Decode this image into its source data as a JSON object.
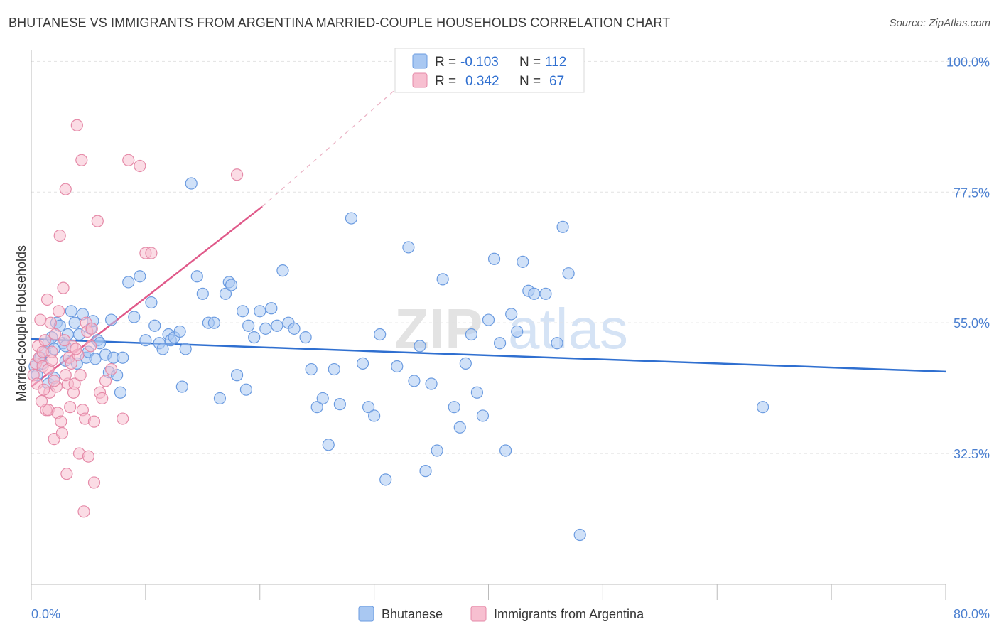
{
  "title": "BHUTANESE VS IMMIGRANTS FROM ARGENTINA MARRIED-COUPLE HOUSEHOLDS CORRELATION CHART",
  "source": "Source: ZipAtlas.com",
  "watermark": {
    "zip": "ZIP",
    "atlas": "atlas"
  },
  "legend": {
    "rows": [
      {
        "r_label": "R =",
        "r_value": "-0.103",
        "n_label": "N =",
        "n_value": "112",
        "color": "#a9c8f2",
        "stroke": "#6b9be0"
      },
      {
        "r_label": "R =",
        "r_value": "0.342",
        "n_label": "N =",
        "n_value": "67",
        "color": "#f7bfd0",
        "stroke": "#e58aa8"
      }
    ]
  },
  "bottom_legend": [
    {
      "label": "Bhutanese",
      "color": "#a9c8f2",
      "stroke": "#6b9be0"
    },
    {
      "label": "Immigrants from Argentina",
      "color": "#f7bfd0",
      "stroke": "#e58aa8"
    }
  ],
  "chart_data": {
    "type": "scatter",
    "title": "BHUTANESE VS IMMIGRANTS FROM ARGENTINA MARRIED-COUPLE HOUSEHOLDS CORRELATION CHART",
    "xlabel": "",
    "ylabel": "Married-couple Households",
    "xlim": [
      0,
      80
    ],
    "ylim": [
      10,
      102
    ],
    "x_tick_labels": [
      "0.0%",
      "80.0%"
    ],
    "y_ticks": [
      32.5,
      55.0,
      77.5,
      100.0
    ],
    "y_tick_labels": [
      "32.5%",
      "55.0%",
      "77.5%",
      "100.0%"
    ],
    "grid": true,
    "legend_position": "top-center",
    "series": [
      {
        "name": "Bhutanese",
        "color": "#6b9be0",
        "fill": "#a9c8f2",
        "trend": {
          "x": [
            0,
            80
          ],
          "y": [
            52.2,
            46.6
          ],
          "color": "#2f6fd0"
        },
        "points": [
          [
            0.3,
            47.5
          ],
          [
            0.5,
            46
          ],
          [
            0.8,
            49
          ],
          [
            1.0,
            48
          ],
          [
            1.2,
            50
          ],
          [
            1.5,
            51.5
          ],
          [
            1.8,
            52.5
          ],
          [
            2.0,
            50.5
          ],
          [
            2.2,
            55
          ],
          [
            2.5,
            54.5
          ],
          [
            2.8,
            51.5
          ],
          [
            3.0,
            51
          ],
          [
            3.2,
            53
          ],
          [
            3.5,
            57
          ],
          [
            3.8,
            55
          ],
          [
            4.0,
            48
          ],
          [
            4.2,
            53
          ],
          [
            4.5,
            56.5
          ],
          [
            4.8,
            49
          ],
          [
            5.0,
            50
          ],
          [
            5.2,
            54
          ],
          [
            5.4,
            55.3
          ],
          [
            5.6,
            48.8
          ],
          [
            5.8,
            52
          ],
          [
            6.0,
            51.5
          ],
          [
            6.5,
            49.5
          ],
          [
            6.8,
            46.5
          ],
          [
            7.0,
            55.5
          ],
          [
            7.2,
            49
          ],
          [
            7.5,
            46
          ],
          [
            7.8,
            43
          ],
          [
            8.0,
            49
          ],
          [
            8.5,
            62
          ],
          [
            9.0,
            56
          ],
          [
            9.5,
            63
          ],
          [
            10.0,
            52
          ],
          [
            10.5,
            58.5
          ],
          [
            10.8,
            54.5
          ],
          [
            11.2,
            51.5
          ],
          [
            11.5,
            50.5
          ],
          [
            12.0,
            53
          ],
          [
            12.2,
            52
          ],
          [
            12.5,
            52.5
          ],
          [
            13.0,
            53.5
          ],
          [
            13.2,
            44
          ],
          [
            13.5,
            50.5
          ],
          [
            14.0,
            79
          ],
          [
            14.5,
            63
          ],
          [
            15.0,
            60
          ],
          [
            15.5,
            55
          ],
          [
            16.0,
            55
          ],
          [
            16.5,
            42
          ],
          [
            17.0,
            60
          ],
          [
            17.3,
            62
          ],
          [
            17.5,
            61.5
          ],
          [
            18.0,
            46
          ],
          [
            18.5,
            57
          ],
          [
            18.8,
            43.5
          ],
          [
            19.0,
            54.5
          ],
          [
            19.5,
            52.5
          ],
          [
            20.0,
            57
          ],
          [
            20.5,
            54
          ],
          [
            21.0,
            57.5
          ],
          [
            21.5,
            54.5
          ],
          [
            22.0,
            64
          ],
          [
            22.5,
            55
          ],
          [
            23.0,
            54
          ],
          [
            24.0,
            52.5
          ],
          [
            24.5,
            47
          ],
          [
            25.0,
            40.5
          ],
          [
            25.5,
            42
          ],
          [
            26.0,
            34
          ],
          [
            26.5,
            47
          ],
          [
            27.0,
            41
          ],
          [
            28.0,
            73
          ],
          [
            29.0,
            48
          ],
          [
            29.5,
            40.5
          ],
          [
            30.0,
            39
          ],
          [
            30.5,
            53
          ],
          [
            31.0,
            28
          ],
          [
            32.0,
            47.5
          ],
          [
            33.0,
            68
          ],
          [
            33.5,
            45
          ],
          [
            34.0,
            51
          ],
          [
            34.5,
            29.5
          ],
          [
            35.0,
            44.5
          ],
          [
            35.5,
            33
          ],
          [
            36.0,
            62.5
          ],
          [
            37.0,
            40.5
          ],
          [
            37.5,
            37
          ],
          [
            38.0,
            48
          ],
          [
            38.5,
            53
          ],
          [
            39.0,
            43
          ],
          [
            39.5,
            39
          ],
          [
            40.0,
            55.5
          ],
          [
            40.5,
            66
          ],
          [
            41.0,
            51.5
          ],
          [
            41.5,
            33
          ],
          [
            42.0,
            56.5
          ],
          [
            42.5,
            53.5
          ],
          [
            43.0,
            65.5
          ],
          [
            43.5,
            60.5
          ],
          [
            44.0,
            60
          ],
          [
            45.0,
            60
          ],
          [
            46.0,
            51.5
          ],
          [
            46.5,
            71.5
          ],
          [
            47.0,
            63.5
          ],
          [
            48.0,
            18.5
          ],
          [
            64.0,
            40.5
          ],
          [
            1.5,
            44.5
          ],
          [
            2.0,
            45.5
          ],
          [
            3.0,
            48.5
          ]
        ]
      },
      {
        "name": "Immigrants from Argentina",
        "color": "#e58aa8",
        "fill": "#f7bfd0",
        "trend": {
          "x": [
            0,
            20.2
          ],
          "y": [
            44,
            75
          ],
          "color": "#e05a8a",
          "dashed_extension": {
            "x": [
              20.2,
              33.5
            ],
            "y": [
              75,
              98
            ]
          }
        },
        "points": [
          [
            0.2,
            46
          ],
          [
            0.4,
            48
          ],
          [
            0.5,
            44.5
          ],
          [
            0.6,
            51
          ],
          [
            0.7,
            49
          ],
          [
            0.8,
            55.5
          ],
          [
            1.0,
            47.5
          ],
          [
            1.2,
            52
          ],
          [
            1.3,
            40
          ],
          [
            1.4,
            59
          ],
          [
            1.5,
            40
          ],
          [
            1.6,
            43
          ],
          [
            1.7,
            55
          ],
          [
            1.8,
            50
          ],
          [
            2.0,
            35
          ],
          [
            2.1,
            53
          ],
          [
            2.2,
            44
          ],
          [
            2.3,
            39.5
          ],
          [
            2.4,
            57
          ],
          [
            2.5,
            70
          ],
          [
            2.6,
            38
          ],
          [
            2.7,
            36
          ],
          [
            2.8,
            61
          ],
          [
            3.0,
            78
          ],
          [
            3.1,
            29
          ],
          [
            3.2,
            44.5
          ],
          [
            3.3,
            49
          ],
          [
            3.4,
            40.5
          ],
          [
            3.5,
            48
          ],
          [
            3.6,
            51
          ],
          [
            3.7,
            43
          ],
          [
            3.8,
            44.5
          ],
          [
            4.0,
            89
          ],
          [
            4.1,
            49.5
          ],
          [
            4.2,
            32.5
          ],
          [
            4.4,
            83
          ],
          [
            4.5,
            40
          ],
          [
            4.6,
            22.5
          ],
          [
            4.7,
            38.5
          ],
          [
            4.8,
            55
          ],
          [
            5.0,
            32
          ],
          [
            5.2,
            51
          ],
          [
            5.5,
            38
          ],
          [
            5.8,
            72.5
          ],
          [
            6.0,
            43
          ],
          [
            6.2,
            42
          ],
          [
            6.5,
            45
          ],
          [
            7.0,
            47
          ],
          [
            8.0,
            38.5
          ],
          [
            8.5,
            83
          ],
          [
            9.5,
            82
          ],
          [
            10.0,
            67
          ],
          [
            10.5,
            67
          ],
          [
            18.0,
            80.5
          ],
          [
            5.5,
            27.5
          ],
          [
            1.0,
            50
          ],
          [
            1.5,
            47
          ],
          [
            2.0,
            45
          ],
          [
            3.0,
            46
          ],
          [
            0.9,
            41.5
          ],
          [
            1.1,
            43.5
          ],
          [
            1.8,
            48.5
          ],
          [
            2.9,
            52
          ],
          [
            3.9,
            50.5
          ],
          [
            4.3,
            46
          ],
          [
            4.9,
            53.5
          ],
          [
            5.3,
            54
          ]
        ]
      }
    ]
  }
}
